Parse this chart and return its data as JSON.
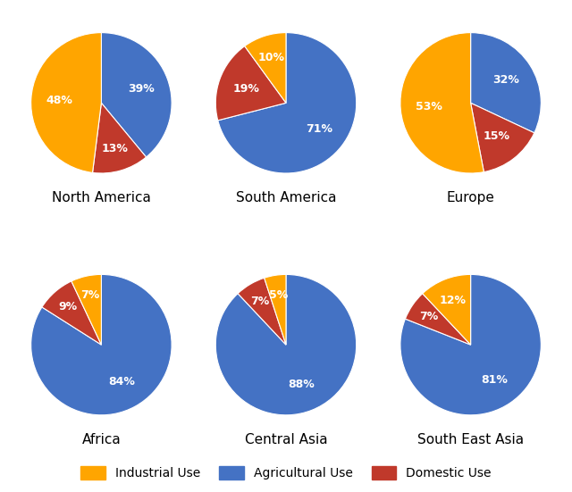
{
  "regions": [
    "North America",
    "South America",
    "Europe",
    "Africa",
    "Central Asia",
    "South East Asia"
  ],
  "data": {
    "North America": [
      39,
      13,
      48
    ],
    "South America": [
      71,
      19,
      10
    ],
    "Europe": [
      32,
      15,
      53
    ],
    "Africa": [
      84,
      9,
      7
    ],
    "Central Asia": [
      88,
      7,
      5
    ],
    "South East Asia": [
      81,
      7,
      12
    ]
  },
  "labels": {
    "North America": [
      "39%",
      "13%",
      "48%"
    ],
    "South America": [
      "71%",
      "19%",
      "10%"
    ],
    "Europe": [
      "32%",
      "15%",
      "53%"
    ],
    "Africa": [
      "84%",
      "9%",
      "7%"
    ],
    "Central Asia": [
      "88%",
      "7%",
      "5%"
    ],
    "South East Asia": [
      "81%",
      "7%",
      "12%"
    ]
  },
  "colors": [
    "#4472C4",
    "#C0392B",
    "#FFA500"
  ],
  "legend_labels": [
    "Industrial Use",
    "Agricultural Use",
    "Domestic Use"
  ],
  "legend_colors": [
    "#FFA500",
    "#4472C4",
    "#C0392B"
  ],
  "title_fontsize": 11,
  "label_fontsize": 9,
  "legend_fontsize": 10,
  "background_color": "#FFFFFF",
  "startangles": {
    "North America": 90,
    "South America": 90,
    "Europe": 90,
    "Africa": 90,
    "Central Asia": 90,
    "South East Asia": 90
  }
}
